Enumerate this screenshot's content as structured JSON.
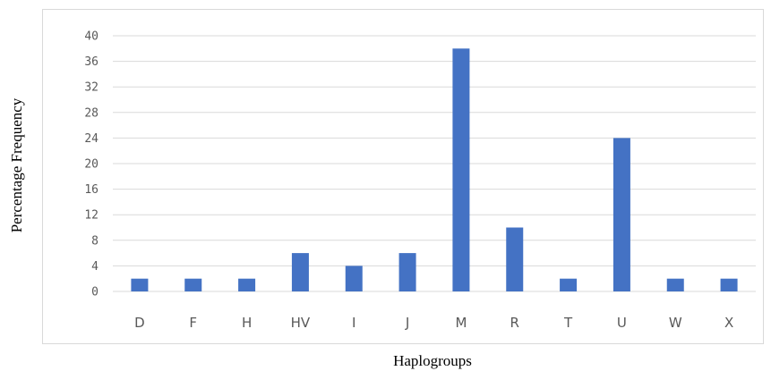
{
  "chart_data": {
    "type": "bar",
    "title": "",
    "xlabel": "Haplogroups",
    "ylabel": "Percentage Frequency",
    "categories": [
      "D",
      "F",
      "H",
      "HV",
      "I",
      "J",
      "M",
      "R",
      "T",
      "U",
      "W",
      "X"
    ],
    "values": [
      2,
      2,
      2,
      6,
      4,
      6,
      38,
      10,
      2,
      24,
      2,
      2
    ],
    "ylim": [
      0,
      40
    ],
    "yticks": [
      0,
      4,
      8,
      12,
      16,
      20,
      24,
      28,
      32,
      36,
      40
    ],
    "grid": true,
    "legend": "none",
    "bar_color": "#4472c4",
    "grid_color": "#d9d9d9"
  }
}
